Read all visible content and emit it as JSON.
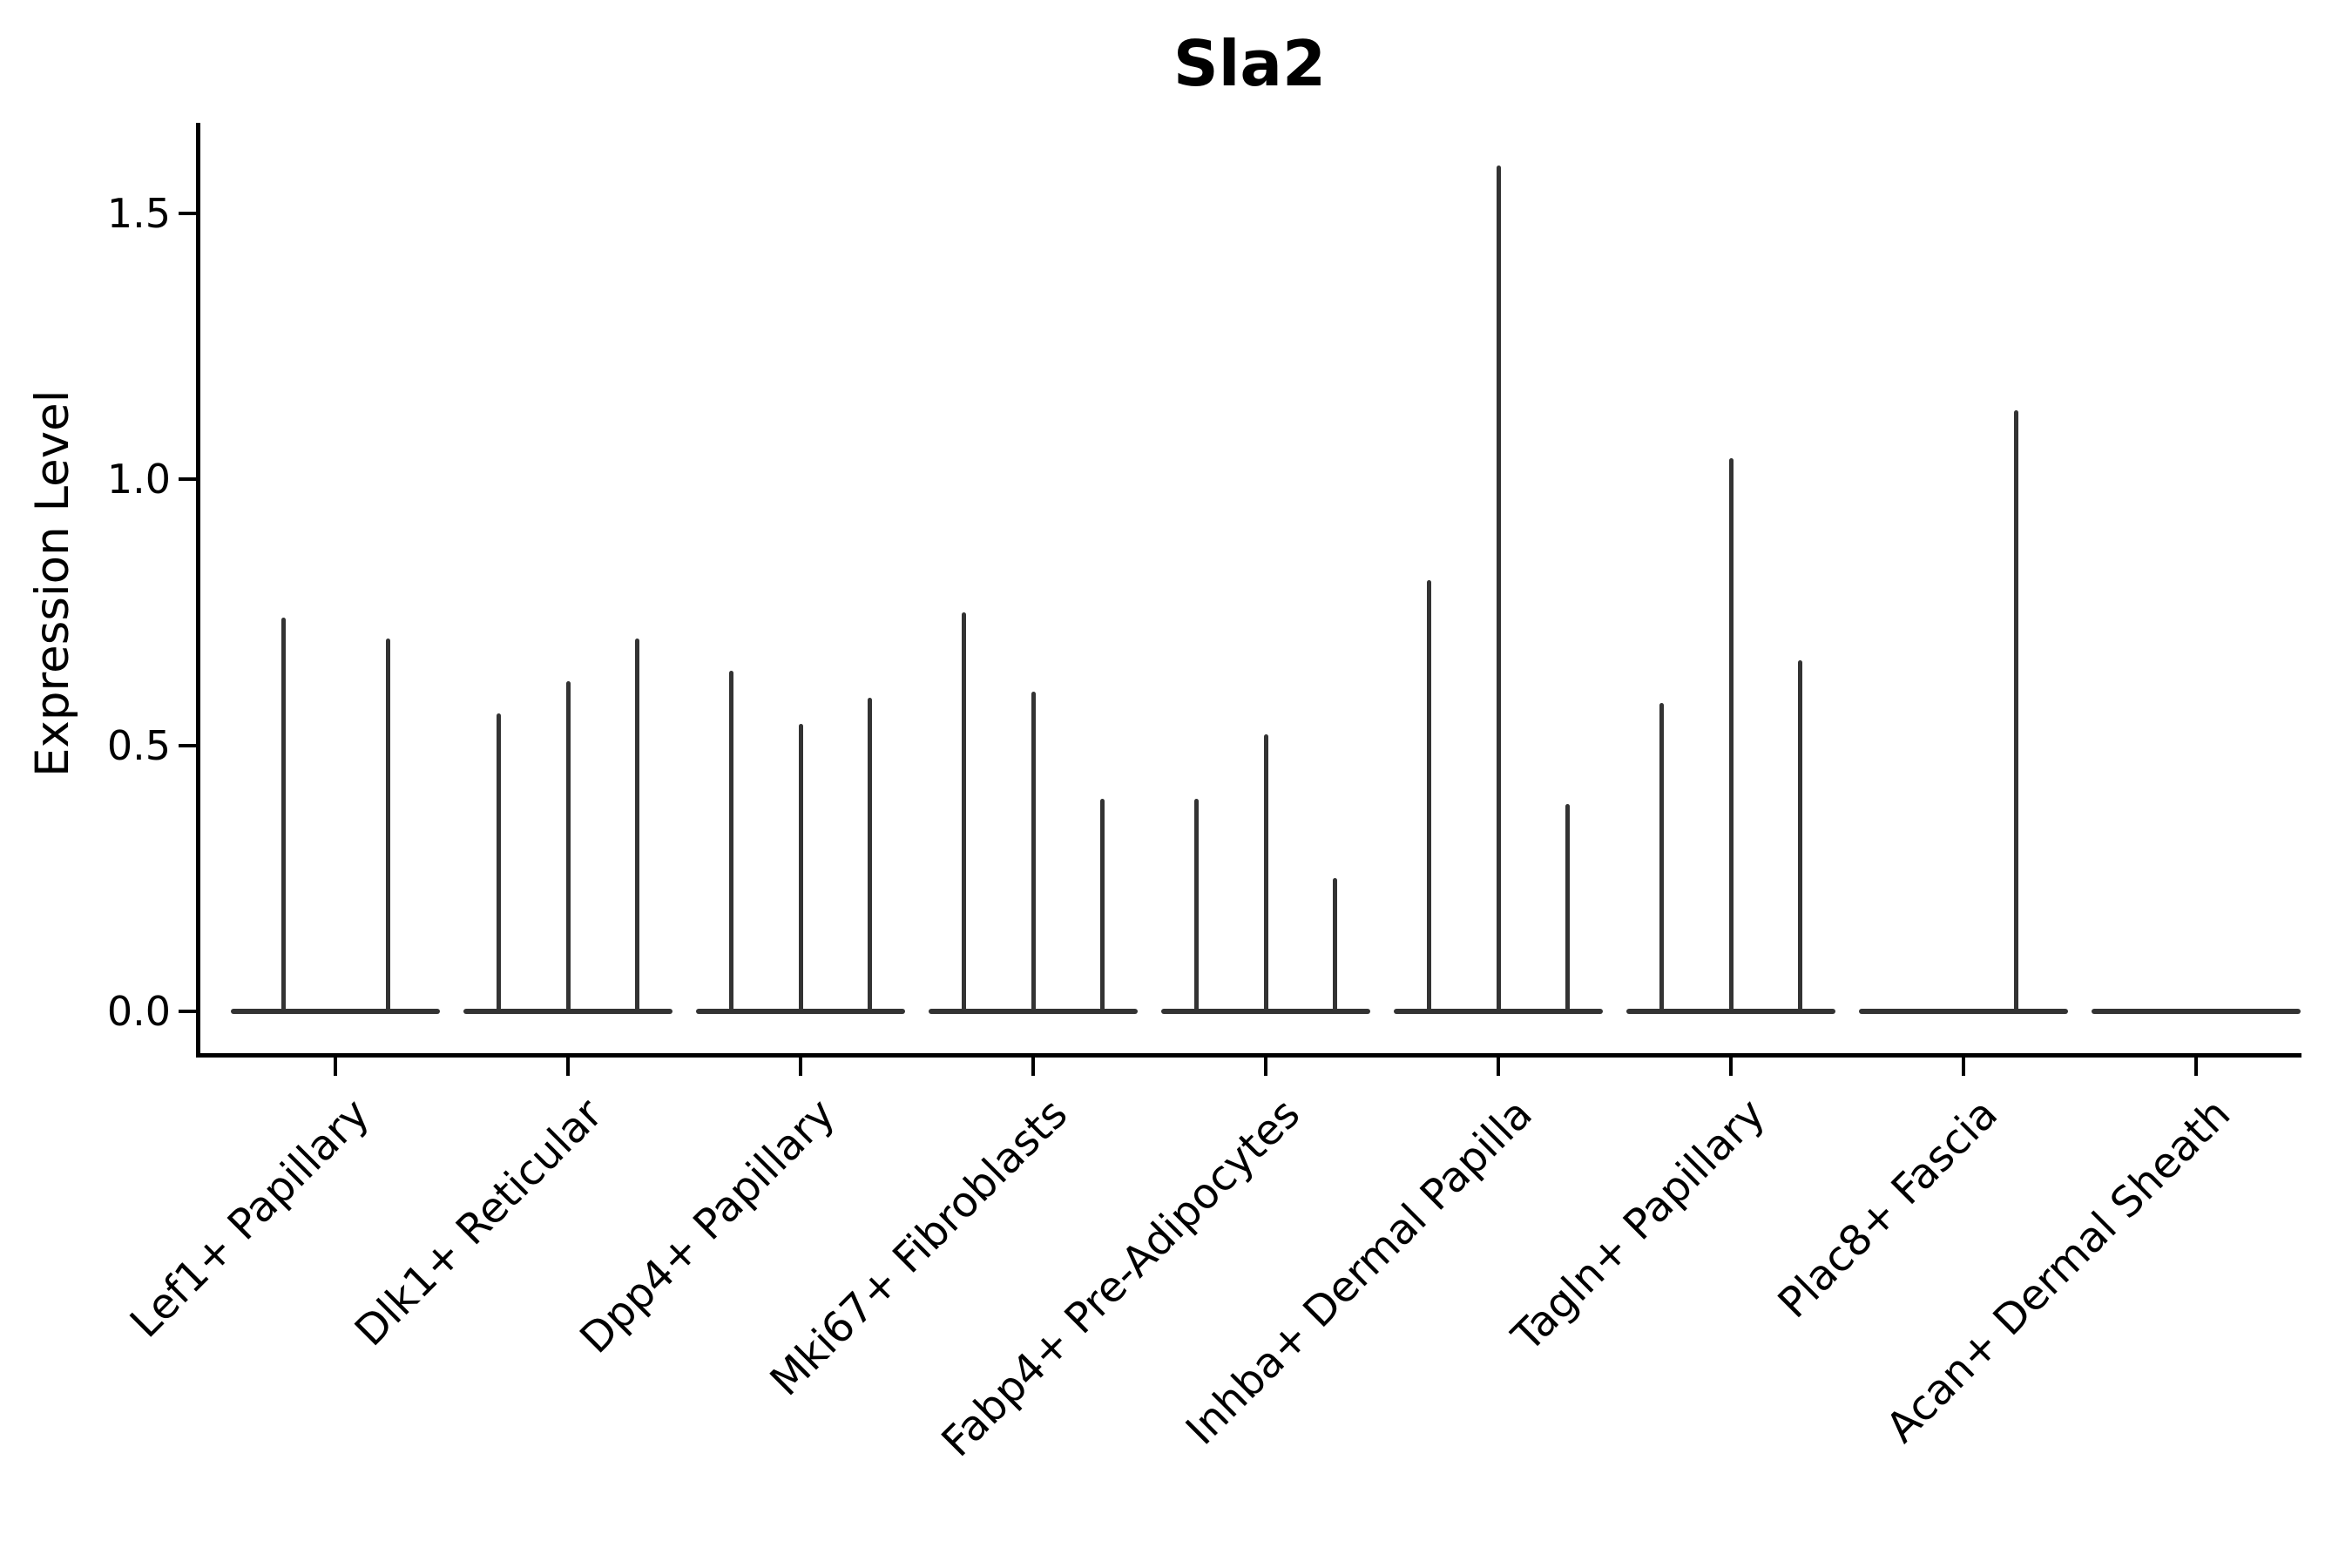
{
  "colors": {
    "axis": "#000000",
    "text": "#000000",
    "violin_line": "#333333",
    "background": "#ffffff"
  },
  "chart_data": {
    "type": "violin",
    "title": "Sla2",
    "ylabel": "Expression Level",
    "xlabel": "",
    "ylim": [
      -0.09,
      1.67
    ],
    "grid": false,
    "legend": null,
    "yticks": [
      {
        "label": "0.0",
        "value": 0.0
      },
      {
        "label": "0.5",
        "value": 0.5
      },
      {
        "label": "1.0",
        "value": 1.0
      },
      {
        "label": "1.5",
        "value": 1.5
      }
    ],
    "description": "Violin plot of Sla2 expression; violin bodies are collapsed flat at 0 with thin vertical density spikes. Each spike is listed as its horizontal position (fraction of the category band) and its maximum expression value.",
    "groups": [
      {
        "label": "Lef1+ Papillary",
        "spikes": [
          {
            "x": 0.25,
            "max": 0.74
          },
          {
            "x": 0.75,
            "max": 0.7
          }
        ]
      },
      {
        "label": "Dlk1+ Reticular",
        "spikes": [
          {
            "x": 0.167,
            "max": 0.56
          },
          {
            "x": 0.5,
            "max": 0.62
          },
          {
            "x": 0.833,
            "max": 0.7
          }
        ]
      },
      {
        "label": "Dpp4+ Papillary",
        "spikes": [
          {
            "x": 0.167,
            "max": 0.64
          },
          {
            "x": 0.5,
            "max": 0.54
          },
          {
            "x": 0.833,
            "max": 0.59
          }
        ]
      },
      {
        "label": "Mki67+ Fibroblasts",
        "spikes": [
          {
            "x": 0.167,
            "max": 0.75
          },
          {
            "x": 0.5,
            "max": 0.6
          },
          {
            "x": 0.833,
            "max": 0.4
          }
        ]
      },
      {
        "label": "Fabp4+ Pre-Adipocytes",
        "spikes": [
          {
            "x": 0.167,
            "max": 0.4
          },
          {
            "x": 0.5,
            "max": 0.52
          },
          {
            "x": 0.833,
            "max": 0.25
          }
        ]
      },
      {
        "label": "Inhba+ Dermal Papilla",
        "spikes": [
          {
            "x": 0.167,
            "max": 0.81
          },
          {
            "x": 0.5,
            "max": 1.59
          },
          {
            "x": 0.833,
            "max": 0.39
          }
        ]
      },
      {
        "label": "Tagln+ Papillary",
        "spikes": [
          {
            "x": 0.167,
            "max": 0.58
          },
          {
            "x": 0.5,
            "max": 1.04
          },
          {
            "x": 0.833,
            "max": 0.66
          }
        ]
      },
      {
        "label": "Plac8+ Fascia",
        "spikes": [
          {
            "x": 0.75,
            "max": 1.13
          }
        ]
      },
      {
        "label": "Acan+ Dermal Sheath",
        "spikes": []
      }
    ]
  }
}
